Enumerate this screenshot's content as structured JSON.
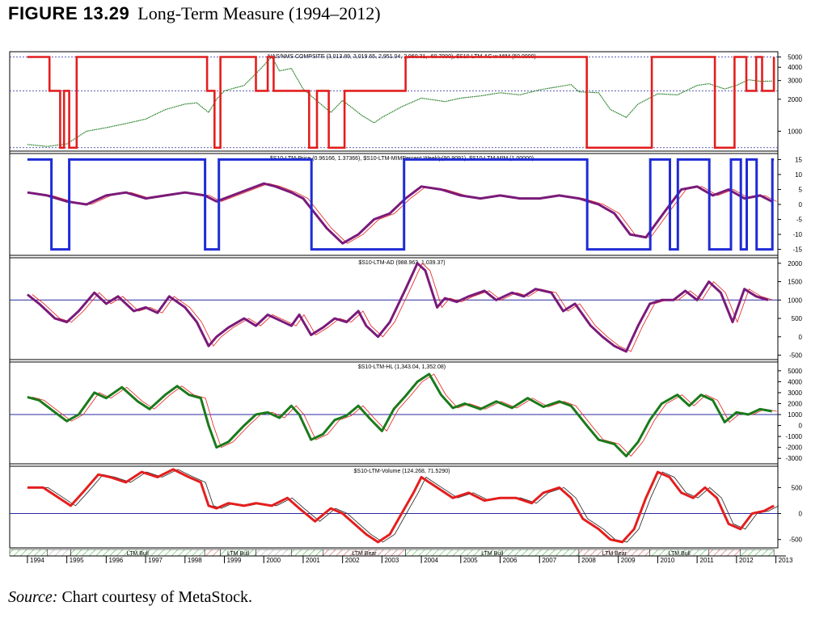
{
  "figure": {
    "label": "FIGURE 13.29",
    "title": "Long-Term Measure (1994–2012)"
  },
  "caption": {
    "source_label": "Source:",
    "text": "Chart courtesy of MetaStock."
  },
  "colors": {
    "red": "#e41e1e",
    "blue": "#1f2bd6",
    "green": "#1a7a1a",
    "purple": "#7a1a7a",
    "grid": "#2a2aa0",
    "thin": "#808080"
  },
  "chart_data": [
    {
      "type": "line",
      "title": "NAS/NMS COMPSITE (3,013.89, 3,019.65, 2,951.04, 2,960.31, -60.7000), $S10-LTM-AC w MIM (50.0000)",
      "y_scale": "log",
      "ylim": [
        650,
        5600
      ],
      "yticks": [
        5000,
        4000,
        3000,
        2000,
        1000
      ],
      "hlines": [
        5000,
        2400,
        700
      ],
      "series": [
        {
          "role": "price",
          "color": "green/blue/red by regime",
          "x": [
            1994.0,
            1994.5,
            1995.0,
            1995.5,
            1996.0,
            1996.5,
            1997.0,
            1997.5,
            1998.0,
            1998.3,
            1998.6,
            1998.8,
            1999.0,
            1999.5,
            1999.9,
            2000.2,
            2000.4,
            2000.7,
            2001.0,
            2001.3,
            2001.7,
            2002.0,
            2002.5,
            2002.8,
            2003.0,
            2003.5,
            2004.0,
            2004.6,
            2005.0,
            2005.5,
            2006.0,
            2006.5,
            2007.0,
            2007.8,
            2008.0,
            2008.5,
            2008.8,
            2009.2,
            2009.5,
            2010.0,
            2010.5,
            2011.0,
            2011.3,
            2011.7,
            2012.0,
            2012.3,
            2012.6,
            2012.9
          ],
          "y": [
            750,
            720,
            760,
            1000,
            1080,
            1180,
            1300,
            1600,
            1800,
            1850,
            1500,
            2000,
            2400,
            2700,
            3800,
            5000,
            3700,
            3900,
            2500,
            2000,
            1500,
            1950,
            1400,
            1200,
            1350,
            1700,
            2050,
            1900,
            2050,
            2150,
            2300,
            2200,
            2450,
            2750,
            2350,
            2300,
            1600,
            1350,
            1800,
            2250,
            2200,
            2700,
            2800,
            2500,
            2700,
            3050,
            2950,
            2960
          ]
        },
        {
          "role": "state",
          "color": "red",
          "x": [
            1994.0,
            1994.55,
            1994.56,
            1994.82,
            1994.83,
            1994.92,
            1994.93,
            1995.05,
            1995.06,
            1995.2,
            1995.25,
            1995.45,
            1995.5,
            1998.55,
            1998.56,
            1998.7,
            1998.75,
            1998.85,
            1998.9,
            1999.75,
            1999.8,
            2000.05,
            2000.1,
            2000.2,
            2000.25,
            2001.1,
            2001.15,
            2001.3,
            2001.35,
            2001.6,
            2001.65,
            2002.0,
            2002.05,
            2003.55,
            2003.6,
            2008.15,
            2008.2,
            2009.8,
            2009.85,
            2011.4,
            2011.45,
            2011.9,
            2011.95,
            2012.2,
            2012.25,
            2012.45,
            2012.5,
            2012.6,
            2012.65,
            2012.95
          ],
          "y": [
            5000,
            5000,
            2400,
            2400,
            700,
            700,
            2400,
            2400,
            700,
            700,
            5000,
            5000,
            5000,
            5000,
            2400,
            2400,
            700,
            700,
            5000,
            5000,
            2400,
            2400,
            5000,
            5000,
            2400,
            2400,
            700,
            700,
            2400,
            2400,
            700,
            700,
            2400,
            2400,
            5000,
            5000,
            700,
            700,
            5000,
            5000,
            700,
            700,
            5000,
            5000,
            2400,
            2400,
            5000,
            5000,
            2400,
            5000
          ]
        }
      ]
    },
    {
      "type": "line",
      "title": "$S10-LTM-Price (0.96166, 1.37366), $S10-LTM-MIMPercent Weekly(90.9091), $S10-LTM-MIM (1.00000)",
      "ylim": [
        -17,
        17
      ],
      "yticks": [
        15,
        10,
        5,
        0,
        -5,
        -10,
        -15
      ],
      "series": [
        {
          "role": "price-oscillator",
          "color": "purple",
          "x": [
            1994.0,
            1994.5,
            1995.0,
            1995.5,
            1996.0,
            1996.5,
            1997.0,
            1997.5,
            1998.0,
            1998.5,
            1998.8,
            1999.2,
            1999.6,
            2000.0,
            2000.3,
            2000.7,
            2001.0,
            2001.3,
            2001.6,
            2002.0,
            2002.4,
            2002.8,
            2003.2,
            2003.6,
            2004.0,
            2004.5,
            2005.0,
            2005.5,
            2006.0,
            2006.5,
            2007.0,
            2007.5,
            2008.0,
            2008.5,
            2008.9,
            2009.3,
            2009.7,
            2010.2,
            2010.6,
            2011.0,
            2011.4,
            2011.8,
            2012.2,
            2012.6,
            2012.9
          ],
          "y": [
            4,
            3,
            1,
            0,
            3,
            4,
            2,
            3,
            4,
            3,
            1,
            3,
            5,
            7,
            6,
            4,
            2,
            -3,
            -8,
            -13,
            -10,
            -5,
            -3,
            2,
            6,
            5,
            3,
            2,
            3,
            2,
            2,
            3,
            2,
            0,
            -3,
            -10,
            -11,
            -2,
            5,
            6,
            3,
            5,
            2,
            3,
            1
          ]
        },
        {
          "role": "mim-state",
          "color": "blue",
          "x": [
            1994.0,
            1994.6,
            1994.61,
            1995.05,
            1995.06,
            1998.5,
            1998.51,
            1998.85,
            1998.86,
            2000.6,
            2001.2,
            2001.21,
            2003.55,
            2003.56,
            2008.2,
            2008.21,
            2009.8,
            2009.81,
            2010.3,
            2010.31,
            2010.5,
            2010.51,
            2011.3,
            2011.31,
            2011.85,
            2011.86,
            2012.1,
            2012.11,
            2012.25,
            2012.26,
            2012.5,
            2012.51,
            2012.9,
            2012.91,
            2012.95
          ],
          "y": [
            15,
            15,
            -15,
            -15,
            15,
            15,
            -15,
            -15,
            15,
            15,
            15,
            -15,
            -15,
            15,
            15,
            -15,
            -15,
            15,
            15,
            -15,
            -15,
            15,
            15,
            -15,
            -15,
            15,
            15,
            -15,
            -15,
            15,
            15,
            -15,
            -15,
            15,
            15
          ]
        }
      ]
    },
    {
      "type": "line",
      "title": "$S10-LTM-AD (988.963, 1,039.37)",
      "ylim": [
        -620,
        2150
      ],
      "yticks": [
        2000,
        1500,
        1000,
        500,
        0,
        -500
      ],
      "hline": 1000,
      "series": [
        {
          "role": "indicator",
          "color": "purple",
          "x": [
            1994.0,
            1994.3,
            1994.7,
            1995.0,
            1995.3,
            1995.7,
            1996.0,
            1996.3,
            1996.7,
            1997.0,
            1997.3,
            1997.6,
            1998.0,
            1998.3,
            1998.6,
            1998.8,
            1999.1,
            1999.5,
            1999.8,
            2000.1,
            2000.4,
            2000.7,
            2000.9,
            2001.2,
            2001.5,
            2001.8,
            2002.1,
            2002.4,
            2002.6,
            2002.9,
            2003.2,
            2003.6,
            2003.9,
            2004.1,
            2004.4,
            2004.6,
            2004.9,
            2005.2,
            2005.6,
            2005.9,
            2006.3,
            2006.6,
            2006.9,
            2007.3,
            2007.6,
            2007.9,
            2008.3,
            2008.6,
            2008.9,
            2009.2,
            2009.5,
            2009.8,
            2010.1,
            2010.4,
            2010.7,
            2011.0,
            2011.3,
            2011.6,
            2011.9,
            2012.2,
            2012.5,
            2012.8
          ],
          "y": [
            1150,
            900,
            500,
            400,
            700,
            1200,
            900,
            1100,
            700,
            800,
            650,
            1100,
            800,
            400,
            -250,
            0,
            250,
            500,
            300,
            600,
            450,
            300,
            600,
            50,
            250,
            500,
            400,
            700,
            300,
            0,
            400,
            1300,
            2000,
            1800,
            800,
            1050,
            950,
            1100,
            1250,
            1000,
            1200,
            1100,
            1300,
            1200,
            700,
            900,
            300,
            0,
            -250,
            -400,
            300,
            900,
            1000,
            1000,
            1250,
            1000,
            1500,
            1200,
            400,
            1300,
            1100,
            1000
          ]
        }
      ]
    },
    {
      "type": "line",
      "title": "$S10-LTM-HL (1,343.04, 1,352.08)",
      "ylim": [
        -3500,
        5800
      ],
      "yticks": [
        5000,
        4000,
        3000,
        2000,
        1000,
        0,
        -1000,
        -2000,
        -3000
      ],
      "hline": 1000,
      "series": [
        {
          "role": "indicator",
          "color": "green",
          "x": [
            1994.0,
            1994.3,
            1994.7,
            1995.0,
            1995.3,
            1995.7,
            1996.0,
            1996.4,
            1996.8,
            1997.1,
            1997.5,
            1997.8,
            1998.1,
            1998.4,
            1998.6,
            1998.8,
            1999.1,
            1999.5,
            1999.8,
            2000.1,
            2000.4,
            2000.7,
            2000.9,
            2001.2,
            2001.5,
            2001.8,
            2002.1,
            2002.4,
            2002.7,
            2003.0,
            2003.3,
            2003.6,
            2003.9,
            2004.2,
            2004.5,
            2004.8,
            2005.1,
            2005.5,
            2005.9,
            2006.3,
            2006.7,
            2007.1,
            2007.5,
            2007.8,
            2008.2,
            2008.5,
            2008.9,
            2009.2,
            2009.5,
            2009.8,
            2010.1,
            2010.5,
            2010.8,
            2011.1,
            2011.4,
            2011.7,
            2012.0,
            2012.3,
            2012.6,
            2012.9
          ],
          "y": [
            2600,
            2300,
            1200,
            400,
            1000,
            3000,
            2500,
            3500,
            2200,
            1500,
            2800,
            3600,
            2800,
            2500,
            0,
            -2000,
            -1500,
            0,
            1000,
            1200,
            700,
            1800,
            1000,
            -1300,
            -800,
            500,
            900,
            1800,
            600,
            -500,
            1500,
            2700,
            4000,
            4700,
            2800,
            1600,
            2000,
            1500,
            2200,
            1600,
            2500,
            1700,
            2200,
            1800,
            0,
            -1300,
            -1700,
            -2800,
            -1500,
            500,
            2000,
            2800,
            1800,
            2800,
            2300,
            300,
            1200,
            1000,
            1500,
            1300
          ]
        }
      ]
    },
    {
      "type": "line",
      "title": "$S10-LTM-Volume (124.268, 71.5290)",
      "ylim": [
        -660,
        910
      ],
      "yticks": [
        500,
        0,
        -500
      ],
      "hline": 0,
      "series": [
        {
          "role": "indicator",
          "color": "red",
          "x": [
            1994.0,
            1994.4,
            1994.8,
            1995.1,
            1995.4,
            1995.8,
            1996.1,
            1996.5,
            1996.9,
            1997.3,
            1997.7,
            1998.1,
            1998.4,
            1998.6,
            1998.8,
            1999.1,
            1999.5,
            1999.8,
            2000.2,
            2000.6,
            2000.9,
            2001.3,
            2001.7,
            2002.0,
            2002.3,
            2002.6,
            2002.9,
            2003.2,
            2003.5,
            2003.8,
            2004.0,
            2004.4,
            2004.8,
            2005.2,
            2005.6,
            2006.0,
            2006.4,
            2006.8,
            2007.1,
            2007.5,
            2007.8,
            2008.1,
            2008.5,
            2008.8,
            2009.1,
            2009.4,
            2009.7,
            2010.0,
            2010.3,
            2010.6,
            2010.9,
            2011.2,
            2011.5,
            2011.8,
            2012.1,
            2012.4,
            2012.7,
            2012.95
          ],
          "y": [
            500,
            500,
            300,
            150,
            400,
            750,
            700,
            600,
            800,
            700,
            850,
            700,
            600,
            150,
            100,
            200,
            150,
            200,
            150,
            300,
            100,
            -150,
            100,
            0,
            -200,
            -400,
            -550,
            -400,
            0,
            400,
            700,
            500,
            300,
            400,
            250,
            300,
            300,
            200,
            400,
            500,
            300,
            -100,
            -300,
            -500,
            -550,
            -300,
            300,
            800,
            700,
            400,
            300,
            500,
            300,
            -200,
            -300,
            0,
            50,
            150
          ]
        }
      ]
    }
  ],
  "timeline": {
    "years": [
      "1994",
      "1995",
      "1996",
      "1997",
      "1998",
      "1999",
      "2000",
      "2001",
      "2002",
      "2003",
      "2004",
      "2005",
      "2006",
      "2007",
      "2008",
      "2009",
      "2010",
      "2011",
      "2012",
      "2013"
    ],
    "x_range": [
      1993.55,
      2013.05
    ],
    "regimes": [
      {
        "start": 1993.55,
        "end": 1994.5,
        "label": "",
        "kind": "bull"
      },
      {
        "start": 1994.5,
        "end": 1995.1,
        "label": "",
        "kind": "neutral"
      },
      {
        "start": 1995.1,
        "end": 1998.5,
        "label": "LTM Bull",
        "kind": "bull"
      },
      {
        "start": 1998.5,
        "end": 1998.9,
        "label": "",
        "kind": "bear"
      },
      {
        "start": 1998.9,
        "end": 1999.8,
        "label": "LTM Bull",
        "kind": "bull"
      },
      {
        "start": 1999.8,
        "end": 2000.7,
        "label": "",
        "kind": "neutral"
      },
      {
        "start": 2000.7,
        "end": 2001.5,
        "label": "",
        "kind": "bull"
      },
      {
        "start": 2001.5,
        "end": 2003.6,
        "label": "LTM Bear",
        "kind": "bear"
      },
      {
        "start": 2003.6,
        "end": 2008.0,
        "label": "LTM Bull",
        "kind": "bull"
      },
      {
        "start": 2008.0,
        "end": 2009.8,
        "label": "LTM Bear",
        "kind": "bear"
      },
      {
        "start": 2009.8,
        "end": 2011.3,
        "label": "LTM Bull",
        "kind": "bull"
      },
      {
        "start": 2011.3,
        "end": 2012.1,
        "label": "",
        "kind": "bear"
      },
      {
        "start": 2012.1,
        "end": 2012.95,
        "label": "",
        "kind": "bull"
      }
    ]
  }
}
